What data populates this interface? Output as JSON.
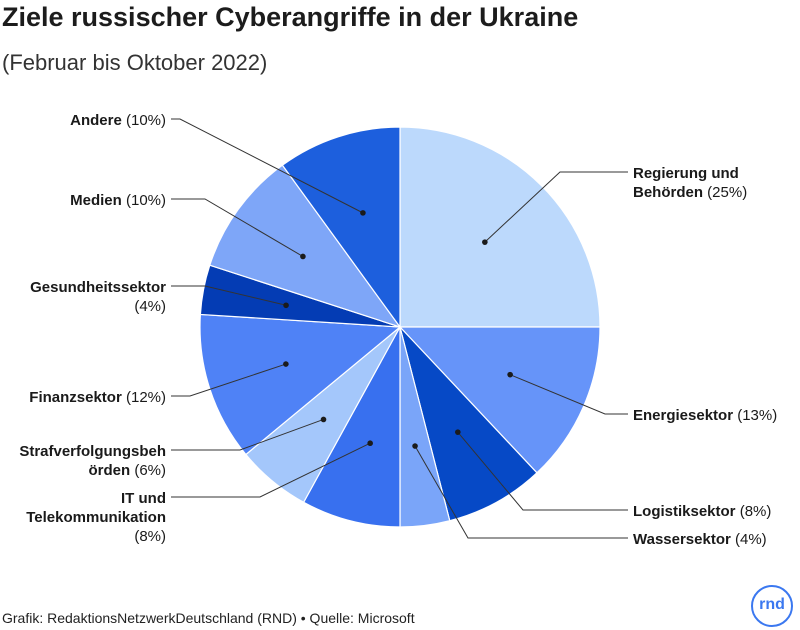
{
  "header": {
    "title": "Ziele russischer Cyberangriffe in der Ukraine",
    "subtitle": "(Februar bis Oktober 2022)"
  },
  "chart_data": {
    "type": "pie",
    "title": "Ziele russischer Cyberangriffe in der Ukraine",
    "subtitle": "(Februar bis Oktober 2022)",
    "unit": "%",
    "slices": [
      {
        "label": "Regierung und Behörden",
        "value": 25,
        "color": "#bcd9fc"
      },
      {
        "label": "Energiesektor",
        "value": 13,
        "color": "#6694f9"
      },
      {
        "label": "Logistiksektor",
        "value": 8,
        "color": "#0649c6"
      },
      {
        "label": "Wassersektor",
        "value": 4,
        "color": "#7aa5f9"
      },
      {
        "label": "IT und Telekommunikation",
        "value": 8,
        "color": "#3870ef"
      },
      {
        "label": "Strafverfolgungsbehörden",
        "value": 6,
        "color": "#a4c7fb"
      },
      {
        "label": "Finanzsektor",
        "value": 12,
        "color": "#4f82f6"
      },
      {
        "label": "Gesundheitssektor",
        "value": 4,
        "color": "#043cb4"
      },
      {
        "label": "Medien",
        "value": 10,
        "color": "#7ea6f8"
      },
      {
        "label": "Andere",
        "value": 10,
        "color": "#1d5fdd"
      }
    ],
    "label_lines": [
      {
        "lines": [
          {
            "bold": "Regierung und",
            "pct": ""
          },
          {
            "bold": "Behörden",
            "pct": "(25%)"
          }
        ]
      },
      {
        "lines": [
          {
            "bold": "Energiesektor",
            "pct": "(13%)"
          }
        ]
      },
      {
        "lines": [
          {
            "bold": "Logistiksektor",
            "pct": "(8%)"
          }
        ]
      },
      {
        "lines": [
          {
            "bold": "Wassersektor",
            "pct": "(4%)"
          }
        ]
      },
      {
        "lines": [
          {
            "bold": "IT und",
            "pct": ""
          },
          {
            "bold": "Telekommunikation",
            "pct": ""
          },
          {
            "bold": "",
            "pct": "(8%)"
          }
        ]
      },
      {
        "lines": [
          {
            "bold": "Strafverfolgungsbeh",
            "pct": ""
          },
          {
            "bold": "örden",
            "pct": "(6%)"
          }
        ]
      },
      {
        "lines": [
          {
            "bold": "Finanzsektor",
            "pct": "(12%)"
          }
        ]
      },
      {
        "lines": [
          {
            "bold": "Gesundheitssektor",
            "pct": ""
          },
          {
            "bold": "",
            "pct": "(4%)"
          }
        ]
      },
      {
        "lines": [
          {
            "bold": "Medien",
            "pct": "(10%)"
          }
        ]
      },
      {
        "lines": [
          {
            "bold": "Andere",
            "pct": "(10%)"
          }
        ]
      }
    ]
  },
  "footer": {
    "credit": "Grafik: RedaktionsNetzwerkDeutschland (RND) • Quelle: Microsoft",
    "logo_text": "rnd"
  }
}
